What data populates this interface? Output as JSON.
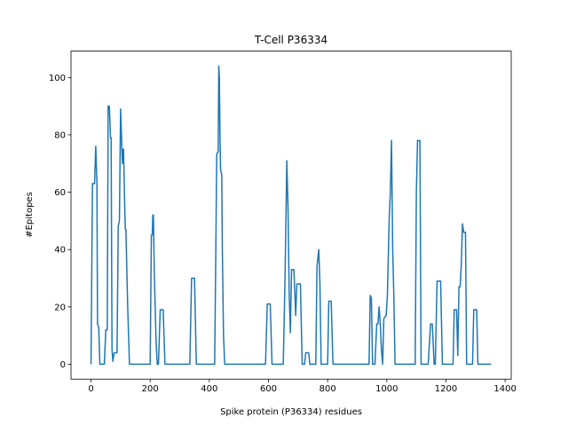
{
  "chart_data": {
    "type": "line",
    "title": "T-Cell P36334",
    "x_label": "Spike protein (P36334) residues",
    "y_label": "#Epitopes",
    "xlim": [
      -67.65,
      1420.65
    ],
    "ylim": [
      -5.2,
      109.2
    ],
    "xticks": [
      0,
      200,
      400,
      600,
      800,
      1000,
      1200,
      1400
    ],
    "yticks": [
      0,
      20,
      40,
      60,
      80,
      100
    ],
    "grid": false,
    "series": [
      {
        "name": "T-Cell P36334",
        "color": "#1f77b4",
        "x": [
          0,
          5,
          12,
          16,
          20,
          22,
          26,
          30,
          45,
          50,
          55,
          58,
          62,
          66,
          68,
          71,
          74,
          78,
          88,
          92,
          96,
          100,
          103,
          106,
          108,
          110,
          114,
          116,
          118,
          124,
          130,
          200,
          204,
          207,
          209,
          211,
          214,
          220,
          224,
          228,
          234,
          244,
          250,
          334,
          340,
          350,
          356,
          418,
          422,
          425,
          428,
          430,
          432,
          434,
          436,
          438,
          440,
          442,
          444,
          448,
          452,
          590,
          596,
          606,
          612,
          650,
          656,
          662,
          666,
          670,
          674,
          678,
          686,
          692,
          696,
          708,
          714,
          722,
          726,
          736,
          740,
          760,
          764,
          770,
          774,
          778,
          800,
          804,
          812,
          818,
          940,
          944,
          948,
          952,
          960,
          966,
          970,
          974,
          978,
          982,
          986,
          990,
          998,
          1002,
          1008,
          1012,
          1016,
          1020,
          1024,
          1028,
          1096,
          1100,
          1104,
          1112,
          1116,
          1140,
          1148,
          1154,
          1160,
          1164,
          1170,
          1182,
          1188,
          1224,
          1228,
          1236,
          1240,
          1244,
          1248,
          1252,
          1256,
          1260,
          1266,
          1270,
          1290,
          1294,
          1304,
          1308,
          1353
        ],
        "values": [
          0,
          63,
          63,
          76,
          63,
          14,
          13,
          0,
          0,
          12,
          12,
          90,
          90,
          79,
          79,
          5,
          1,
          4,
          4,
          48,
          50,
          89,
          80,
          70,
          75,
          75,
          55,
          47,
          47,
          20,
          0,
          0,
          45,
          45,
          52,
          52,
          32,
          8,
          0,
          0,
          19,
          19,
          0,
          0,
          30,
          30,
          0,
          0,
          40,
          73,
          74,
          74,
          104,
          100,
          80,
          68,
          67,
          66,
          40,
          10,
          0,
          0,
          21,
          21,
          0,
          0,
          30,
          71,
          55,
          25,
          11,
          33,
          33,
          17,
          28,
          28,
          0,
          0,
          4,
          4,
          0,
          0,
          34,
          40,
          28,
          0,
          0,
          22,
          22,
          0,
          0,
          24,
          23,
          0,
          0,
          14,
          14,
          20,
          14,
          5,
          0,
          16,
          17,
          24,
          50,
          60,
          78,
          40,
          23,
          0,
          0,
          60,
          78,
          78,
          0,
          0,
          14,
          14,
          0,
          0,
          29,
          29,
          0,
          0,
          19,
          19,
          3,
          27,
          27,
          35,
          49,
          46,
          46,
          0,
          0,
          19,
          19,
          0,
          0
        ]
      }
    ]
  }
}
